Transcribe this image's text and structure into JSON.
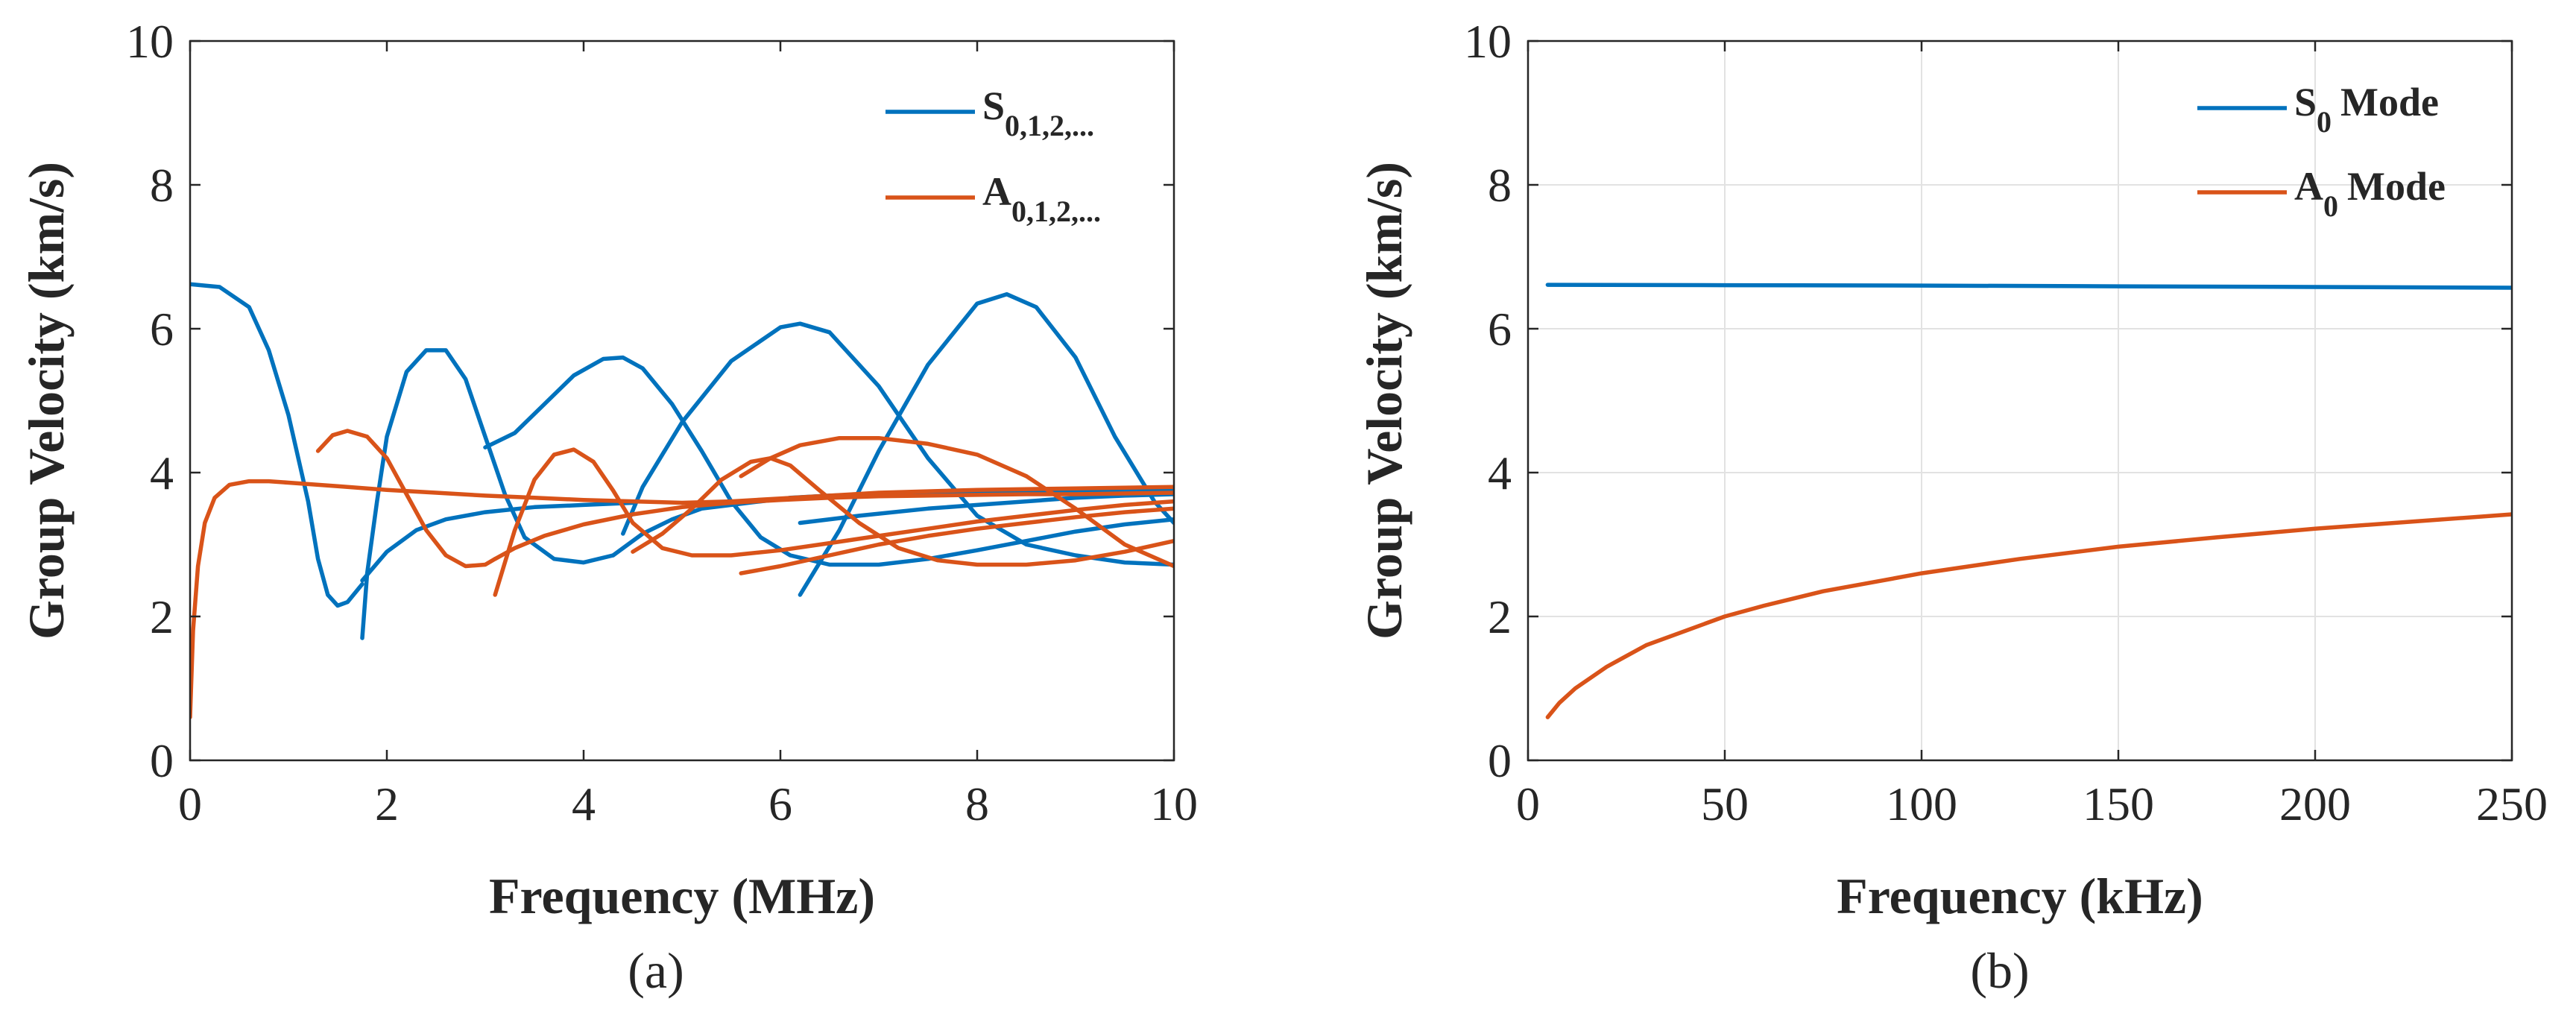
{
  "colors": {
    "s_mode": "#0072BD",
    "a_mode": "#D95319",
    "grid": "#e2e2e2",
    "axis": "#262626"
  },
  "chart_data": [
    {
      "panel_label": "(a)",
      "type": "line",
      "xlabel": "Frequency (MHz)",
      "ylabel": "Group Velocity (km/s)",
      "xlim": [
        0,
        10
      ],
      "ylim": [
        0,
        10
      ],
      "xticks": [
        0,
        2,
        4,
        6,
        8,
        10
      ],
      "yticks": [
        0,
        2,
        4,
        6,
        8,
        10
      ],
      "grid": false,
      "legend_position": "top-right",
      "legend": [
        {
          "base": "S",
          "sub": "0,1,2,...",
          "color_key": "s_mode"
        },
        {
          "base": "A",
          "sub": "0,1,2,...",
          "color_key": "a_mode"
        }
      ],
      "series": [
        {
          "mode": "S",
          "color_key": "s_mode",
          "x": [
            0,
            0.3,
            0.6,
            0.8,
            1.0,
            1.2,
            1.3,
            1.4,
            1.5,
            1.6,
            1.75
          ],
          "y": [
            6.62,
            6.58,
            6.3,
            5.7,
            4.8,
            3.6,
            2.8,
            2.3,
            2.15,
            2.2,
            2.45
          ]
        },
        {
          "mode": "S",
          "color_key": "s_mode",
          "x": [
            1.75,
            1.8,
            1.9,
            2.0,
            2.2,
            2.4,
            2.6,
            2.8,
            3.0,
            3.2,
            3.4,
            3.7,
            4.0,
            4.3
          ],
          "y": [
            1.7,
            2.6,
            3.6,
            4.5,
            5.4,
            5.7,
            5.7,
            5.3,
            4.5,
            3.7,
            3.1,
            2.8,
            2.75,
            2.85
          ]
        },
        {
          "mode": "S",
          "color_key": "s_mode",
          "x": [
            4.3,
            4.6,
            4.9,
            5.2,
            5.5,
            5.8,
            6.1
          ],
          "y": [
            2.85,
            3.15,
            3.35,
            3.5,
            3.55,
            3.6,
            3.65
          ]
        },
        {
          "mode": "S",
          "color_key": "s_mode",
          "x": [
            6.1,
            6.5,
            7.0,
            7.5,
            8.0,
            8.5,
            9.0,
            9.5,
            10.0
          ],
          "y": [
            3.65,
            3.68,
            3.7,
            3.7,
            3.72,
            3.72,
            3.74,
            3.75,
            3.76
          ]
        },
        {
          "mode": "S",
          "color_key": "s_mode",
          "x": [
            1.75,
            2.0,
            2.3,
            2.6,
            3.0,
            3.5,
            4.0,
            4.5
          ],
          "y": [
            2.5,
            2.9,
            3.2,
            3.35,
            3.45,
            3.52,
            3.55,
            3.58
          ]
        },
        {
          "mode": "S",
          "color_key": "s_mode",
          "x": [
            3.0,
            3.3,
            3.6,
            3.9,
            4.2,
            4.4,
            4.6,
            4.9,
            5.2,
            5.5,
            5.8,
            6.1,
            6.5,
            7.0,
            7.5
          ],
          "y": [
            4.35,
            4.55,
            4.95,
            5.35,
            5.58,
            5.6,
            5.45,
            4.95,
            4.3,
            3.6,
            3.1,
            2.85,
            2.72,
            2.72,
            2.8
          ]
        },
        {
          "mode": "S",
          "color_key": "s_mode",
          "x": [
            7.5,
            8.0,
            8.5,
            9.0,
            9.5,
            10.0
          ],
          "y": [
            2.8,
            2.92,
            3.05,
            3.18,
            3.28,
            3.35
          ]
        },
        {
          "mode": "S",
          "color_key": "s_mode",
          "x": [
            4.4,
            4.6,
            5.0,
            5.5,
            6.0,
            6.2,
            6.5,
            7.0,
            7.5,
            8.0,
            8.5,
            9.0,
            9.5,
            10.0
          ],
          "y": [
            3.15,
            3.8,
            4.7,
            5.55,
            6.02,
            6.07,
            5.95,
            5.2,
            4.2,
            3.4,
            3.0,
            2.85,
            2.75,
            2.72
          ]
        },
        {
          "mode": "S",
          "color_key": "s_mode",
          "x": [
            6.2,
            6.6,
            7.0,
            7.5,
            8.0,
            8.3,
            8.6,
            9.0,
            9.4,
            9.8,
            10.0
          ],
          "y": [
            2.3,
            3.2,
            4.3,
            5.5,
            6.35,
            6.48,
            6.3,
            5.6,
            4.5,
            3.6,
            3.3
          ]
        },
        {
          "mode": "S",
          "color_key": "s_mode",
          "x": [
            6.2,
            6.8,
            7.5,
            8.0,
            8.5,
            9.0,
            9.5,
            10.0
          ],
          "y": [
            3.3,
            3.4,
            3.5,
            3.55,
            3.6,
            3.65,
            3.68,
            3.7
          ]
        },
        {
          "mode": "A",
          "color_key": "a_mode",
          "x": [
            0,
            0.03,
            0.08,
            0.15,
            0.25,
            0.4,
            0.6,
            0.8,
            1.0,
            1.5,
            2.0,
            2.5,
            3.0,
            3.5,
            4.0,
            4.5,
            5.0,
            5.5,
            6.0,
            6.5,
            7.0,
            8.0,
            9.0,
            10.0
          ],
          "y": [
            0.6,
            1.8,
            2.7,
            3.3,
            3.65,
            3.83,
            3.88,
            3.88,
            3.86,
            3.81,
            3.76,
            3.72,
            3.68,
            3.65,
            3.62,
            3.6,
            3.58,
            3.6,
            3.64,
            3.68,
            3.72,
            3.76,
            3.78,
            3.8
          ]
        },
        {
          "mode": "A",
          "color_key": "a_mode",
          "x": [
            1.3,
            1.45,
            1.6,
            1.8,
            2.0,
            2.2,
            2.4,
            2.6,
            2.8,
            3.0,
            3.1
          ],
          "y": [
            4.3,
            4.52,
            4.58,
            4.5,
            4.2,
            3.7,
            3.2,
            2.85,
            2.7,
            2.72,
            2.8
          ]
        },
        {
          "mode": "A",
          "color_key": "a_mode",
          "x": [
            3.1,
            3.3,
            3.6,
            4.0,
            4.5,
            5.0,
            5.5,
            6.0,
            6.5,
            7.0,
            7.5,
            8.0,
            8.5,
            9.0,
            9.5,
            10.0
          ],
          "y": [
            2.8,
            2.95,
            3.12,
            3.28,
            3.42,
            3.52,
            3.58,
            3.62,
            3.65,
            3.67,
            3.68,
            3.69,
            3.7,
            3.7,
            3.71,
            3.72
          ]
        },
        {
          "mode": "A",
          "color_key": "a_mode",
          "x": [
            3.1,
            3.3,
            3.5,
            3.7,
            3.9,
            4.1,
            4.3,
            4.5,
            4.8,
            5.1,
            5.5,
            6.0,
            6.5,
            7.0,
            7.5,
            8.0,
            8.5,
            9.0,
            9.5,
            10.0
          ],
          "y": [
            2.3,
            3.2,
            3.9,
            4.25,
            4.32,
            4.15,
            3.75,
            3.3,
            2.95,
            2.85,
            2.85,
            2.92,
            3.02,
            3.12,
            3.22,
            3.32,
            3.4,
            3.48,
            3.55,
            3.6
          ]
        },
        {
          "mode": "A",
          "color_key": "a_mode",
          "x": [
            4.5,
            4.8,
            5.1,
            5.4,
            5.7,
            5.9,
            6.1,
            6.4,
            6.8,
            7.2,
            7.6,
            8.0,
            8.5,
            9.0,
            9.5,
            10.0
          ],
          "y": [
            2.9,
            3.15,
            3.5,
            3.9,
            4.15,
            4.2,
            4.1,
            3.75,
            3.3,
            2.95,
            2.78,
            2.72,
            2.72,
            2.78,
            2.9,
            3.05
          ]
        },
        {
          "mode": "A",
          "color_key": "a_mode",
          "x": [
            5.6,
            5.9,
            6.2,
            6.6,
            7.0,
            7.5,
            8.0,
            8.5,
            9.0,
            9.5,
            10.0
          ],
          "y": [
            3.95,
            4.2,
            4.38,
            4.48,
            4.48,
            4.4,
            4.25,
            3.95,
            3.5,
            3.0,
            2.7
          ]
        },
        {
          "mode": "A",
          "color_key": "a_mode",
          "x": [
            5.6,
            6.0,
            6.5,
            7.0,
            7.5,
            8.0,
            8.5,
            9.0,
            9.5,
            10.0
          ],
          "y": [
            2.6,
            2.7,
            2.85,
            3.0,
            3.12,
            3.22,
            3.3,
            3.38,
            3.45,
            3.5
          ]
        }
      ]
    },
    {
      "panel_label": "(b)",
      "type": "line",
      "xlabel": "Frequency (kHz)",
      "ylabel": "Group Velocity (km/s)",
      "xlim": [
        0,
        250
      ],
      "ylim": [
        0,
        10
      ],
      "xticks": [
        0,
        50,
        100,
        150,
        200,
        250
      ],
      "yticks": [
        0,
        2,
        4,
        6,
        8,
        10
      ],
      "grid": true,
      "legend_position": "top-right",
      "legend": [
        {
          "base": "S",
          "sub": "0",
          "rest": "Mode",
          "color_key": "s_mode"
        },
        {
          "base": "A",
          "sub": "0",
          "rest": "Mode",
          "color_key": "a_mode"
        }
      ],
      "series": [
        {
          "mode": "S",
          "color_key": "s_mode",
          "x": [
            5,
            50,
            100,
            150,
            200,
            250
          ],
          "y": [
            6.61,
            6.605,
            6.6,
            6.59,
            6.58,
            6.57
          ]
        },
        {
          "mode": "A",
          "color_key": "a_mode",
          "x": [
            5,
            8,
            12,
            16,
            20,
            25,
            30,
            40,
            50,
            60,
            75,
            90,
            100,
            125,
            150,
            175,
            200,
            225,
            250
          ],
          "y": [
            0.6,
            0.8,
            1.0,
            1.15,
            1.3,
            1.45,
            1.6,
            1.8,
            2.0,
            2.15,
            2.35,
            2.5,
            2.6,
            2.8,
            2.97,
            3.1,
            3.22,
            3.32,
            3.42
          ]
        }
      ]
    }
  ]
}
